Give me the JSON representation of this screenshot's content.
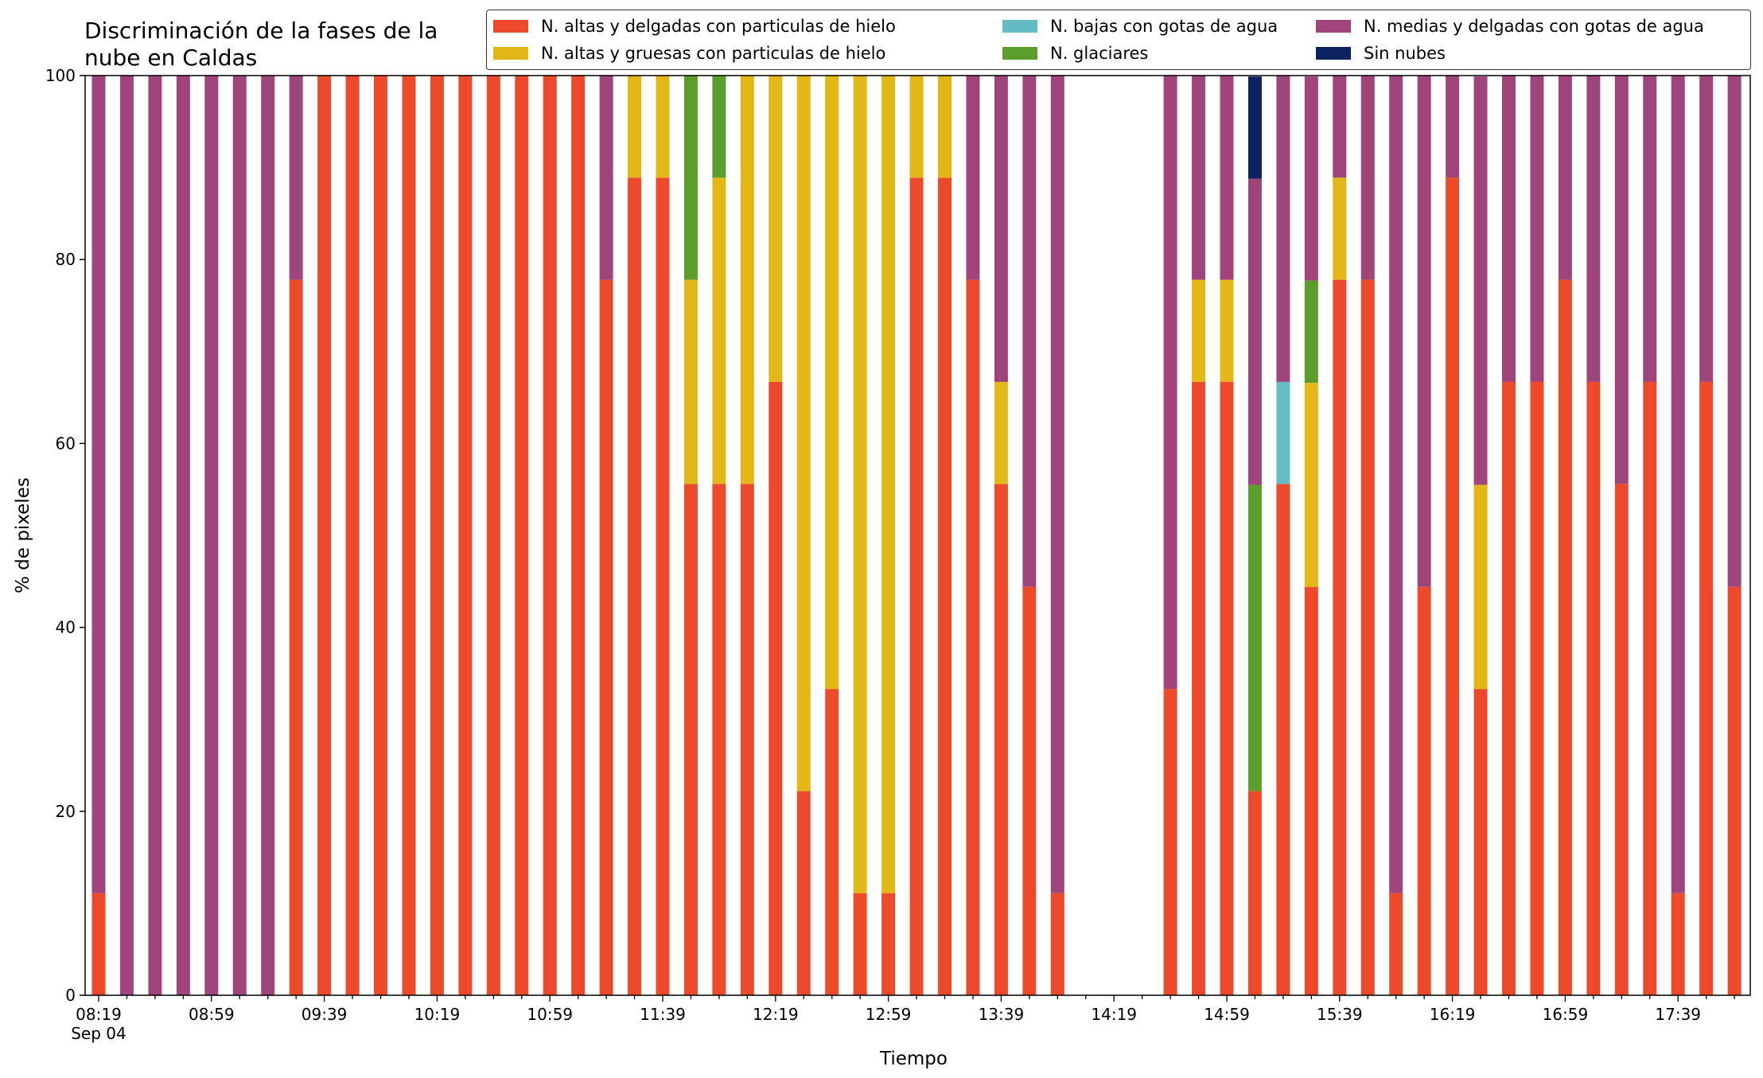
{
  "chart_data": {
    "type": "bar",
    "stacked": true,
    "title": "Discriminación de la fases de la\nnube en Caldas",
    "xlabel": "Tiempo",
    "ylabel": "% de pixeles",
    "ylim": [
      0,
      100
    ],
    "yticks": [
      0,
      20,
      40,
      60,
      80,
      100
    ],
    "xtick_labels": [
      "08:19\nSep 04",
      "08:59",
      "09:39",
      "10:19",
      "10:59",
      "11:39",
      "12:19",
      "12:59",
      "13:39",
      "14:19",
      "14:59",
      "15:39",
      "16:19",
      "16:59",
      "17:39"
    ],
    "x_start": "08:19",
    "x_step_minutes": 10,
    "slots": 59,
    "legend_position": "top-right",
    "grid": false,
    "series": [
      {
        "name": "N. altas y delgadas con particulas de hielo",
        "color": "#ec4a2b",
        "values": [
          11.1,
          0,
          0,
          0,
          0,
          0,
          0,
          77.8,
          100,
          100,
          100,
          100,
          100,
          100,
          100,
          100,
          100,
          100,
          77.8,
          88.9,
          88.9,
          55.6,
          55.6,
          55.6,
          66.7,
          22.2,
          33.3,
          11.1,
          11.1,
          88.9,
          88.9,
          77.8,
          55.6,
          44.4,
          11.1,
          0,
          0,
          0,
          33.3,
          66.7,
          66.7,
          22.2,
          55.6,
          44.4,
          77.8,
          77.8,
          11.1,
          44.4,
          88.9,
          33.3,
          66.7,
          66.7,
          77.8,
          66.7,
          55.6,
          66.7,
          11.1,
          66.7,
          44.4
        ]
      },
      {
        "name": "N. altas y gruesas con particulas de hielo",
        "color": "#e3b716",
        "values": [
          0,
          0,
          0,
          0,
          0,
          0,
          0,
          0,
          0,
          0,
          0,
          0,
          0,
          0,
          0,
          0,
          0,
          0,
          0,
          11.1,
          11.1,
          22.2,
          33.3,
          44.4,
          33.3,
          77.8,
          66.7,
          88.9,
          88.9,
          11.1,
          11.1,
          0,
          11.1,
          0,
          0,
          0,
          0,
          0,
          0,
          11.1,
          11.1,
          0,
          0,
          22.2,
          11.1,
          0,
          0,
          0,
          0,
          22.2,
          0,
          0,
          0,
          0,
          0,
          0,
          0,
          0,
          0
        ]
      },
      {
        "name": "N. bajas con gotas de agua",
        "color": "#63bcc6",
        "values": [
          0,
          0,
          0,
          0,
          0,
          0,
          0,
          0,
          0,
          0,
          0,
          0,
          0,
          0,
          0,
          0,
          0,
          0,
          0,
          0,
          0,
          0,
          0,
          0,
          0,
          0,
          0,
          0,
          0,
          0,
          0,
          0,
          0,
          0,
          0,
          0,
          0,
          0,
          0,
          0,
          0,
          0,
          11.1,
          0,
          0,
          0,
          0,
          0,
          0,
          0,
          0,
          0,
          0,
          0,
          0,
          0,
          0,
          0,
          0
        ]
      },
      {
        "name": "N. glaciares",
        "color": "#5b9e2c",
        "values": [
          0,
          0,
          0,
          0,
          0,
          0,
          0,
          0,
          0,
          0,
          0,
          0,
          0,
          0,
          0,
          0,
          0,
          0,
          0,
          0,
          0,
          22.2,
          11.1,
          0,
          0,
          0,
          0,
          0,
          0,
          0,
          0,
          0,
          0,
          0,
          0,
          0,
          0,
          0,
          0,
          0,
          0,
          33.3,
          0,
          11.1,
          0,
          0,
          0,
          0,
          0,
          0,
          0,
          0,
          0,
          0,
          0,
          0,
          0,
          0,
          0
        ]
      },
      {
        "name": "N. medias y delgadas con gotas de agua",
        "color": "#a0457b",
        "values": [
          88.9,
          100,
          100,
          100,
          100,
          100,
          100,
          22.2,
          0,
          0,
          0,
          0,
          0,
          0,
          0,
          0,
          0,
          0,
          22.2,
          0,
          0,
          0,
          0,
          0,
          0,
          0,
          0,
          0,
          0,
          0,
          0,
          22.2,
          33.3,
          55.6,
          88.9,
          0,
          0,
          0,
          66.7,
          22.2,
          22.2,
          33.3,
          33.3,
          22.2,
          11.1,
          22.2,
          88.9,
          55.6,
          11.1,
          44.4,
          33.3,
          33.3,
          22.2,
          33.3,
          44.4,
          33.3,
          88.9,
          33.3,
          55.6
        ]
      },
      {
        "name": "Sin nubes",
        "color": "#0d2260",
        "values": [
          0,
          0,
          0,
          0,
          0,
          0,
          0,
          0,
          0,
          0,
          0,
          0,
          0,
          0,
          0,
          0,
          0,
          0,
          0,
          0,
          0,
          0,
          0,
          0,
          0,
          0,
          0,
          0,
          0,
          0,
          0,
          0,
          0,
          0,
          0,
          0,
          0,
          0,
          0,
          0,
          0,
          11.1,
          0,
          0,
          0,
          0,
          0,
          0,
          0,
          0,
          0,
          0,
          0,
          0,
          0,
          0,
          0,
          0,
          0
        ]
      }
    ]
  }
}
